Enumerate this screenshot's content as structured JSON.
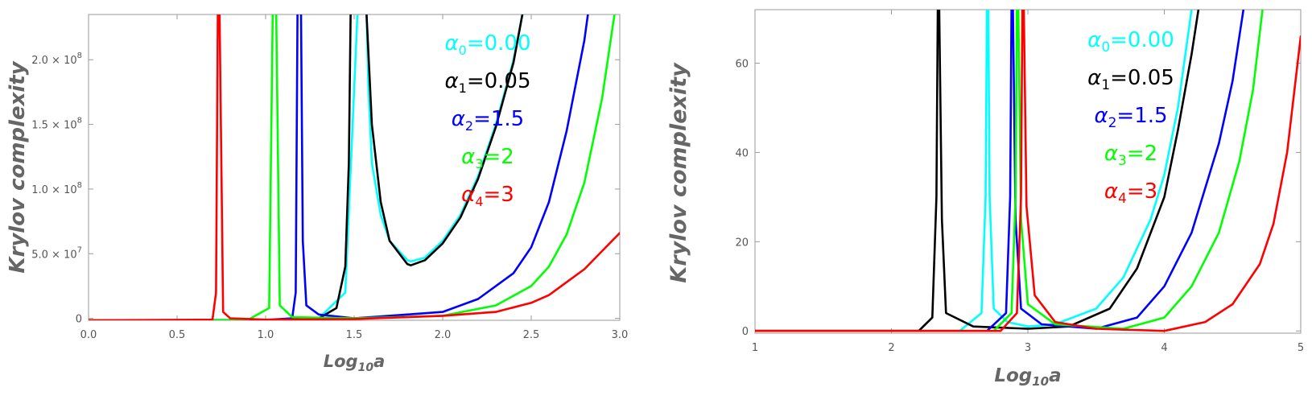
{
  "chart_data": [
    {
      "type": "line",
      "xlabel": "Log",
      "xlabel_sub": "10",
      "xlabel_tail": "a",
      "ylabel": "Krylov complexity",
      "xlim": [
        0,
        3.0
      ],
      "ylim": [
        -1500000,
        235000000
      ],
      "xticks": [
        0.0,
        0.5,
        1.0,
        1.5,
        2.0,
        2.5,
        3.0
      ],
      "xtick_labels": [
        "0.0",
        "0.5",
        "1.0",
        "1.5",
        "2.0",
        "2.5",
        "3.0"
      ],
      "yticks": [
        0,
        50000000,
        100000000,
        150000000,
        200000000
      ],
      "ytick_labels": [
        {
          "mantissa": "0",
          "exponent": ""
        },
        {
          "mantissa": "5.0 × 10",
          "exponent": "7"
        },
        {
          "mantissa": "1.0 × 10",
          "exponent": "8"
        },
        {
          "mantissa": "1.5 × 10",
          "exponent": "8"
        },
        {
          "mantissa": "2.0 × 10",
          "exponent": "8"
        }
      ],
      "legend_placement": "top-right",
      "series": [
        {
          "name": "α0=0.00",
          "sym": "α",
          "sub": "0",
          "tail": "=0.00",
          "color": "#00ffff",
          "x": [
            0.0,
            1.0,
            1.3,
            1.45,
            1.52,
            1.54,
            1.57,
            1.58,
            1.6,
            1.65,
            1.7,
            1.8,
            1.82,
            1.9,
            2.0,
            2.1,
            2.2,
            2.3,
            2.4,
            2.45
          ],
          "y": [
            -1500000,
            -1400000,
            0,
            20000000,
            240000000,
            240000000,
            235000000,
            180000000,
            120000000,
            80000000,
            60000000,
            45000000,
            44000000,
            47000000,
            60000000,
            80000000,
            110000000,
            150000000,
            200000000,
            235000000
          ]
        },
        {
          "name": "α1=0.05",
          "sym": "α",
          "sub": "1",
          "tail": "=0.05",
          "color": "#000000",
          "x": [
            0.0,
            1.0,
            1.3,
            1.4,
            1.45,
            1.47,
            1.48,
            1.49,
            1.55,
            1.57,
            1.6,
            1.65,
            1.7,
            1.8,
            1.82,
            1.9,
            2.0,
            2.1,
            2.2,
            2.3,
            2.4,
            2.45
          ],
          "y": [
            -1500000,
            -1400000,
            0,
            8000000,
            40000000,
            120000000,
            235000000,
            240000000,
            240000000,
            235000000,
            150000000,
            90000000,
            60000000,
            42000000,
            41000000,
            45000000,
            58000000,
            78000000,
            108000000,
            148000000,
            198000000,
            235000000
          ]
        },
        {
          "name": "α2=1.5",
          "sym": "α",
          "sub": "2",
          "tail": "=1.5",
          "color": "#0000ff",
          "x": [
            0.0,
            1.0,
            1.15,
            1.17,
            1.18,
            1.19,
            1.2,
            1.21,
            1.23,
            1.3,
            1.5,
            2.0,
            2.2,
            2.4,
            2.5,
            2.6,
            2.7,
            2.8,
            2.82
          ],
          "y": [
            -1500000,
            -1200000,
            0,
            20000000,
            235000000,
            240000000,
            235000000,
            60000000,
            10000000,
            3000000,
            0,
            5000000,
            15000000,
            35000000,
            55000000,
            90000000,
            145000000,
            215000000,
            235000000
          ]
        },
        {
          "name": "α3=2",
          "sym": "α",
          "sub": "3",
          "tail": "=2",
          "color": "#00ff00",
          "x": [
            0.0,
            0.9,
            1.02,
            1.04,
            1.05,
            1.06,
            1.08,
            1.15,
            1.5,
            2.0,
            2.3,
            2.5,
            2.6,
            2.7,
            2.8,
            2.9,
            2.97
          ],
          "y": [
            -1500000,
            -1200000,
            8000000,
            235000000,
            240000000,
            235000000,
            10000000,
            1000000,
            0,
            2000000,
            10000000,
            25000000,
            40000000,
            65000000,
            105000000,
            170000000,
            235000000
          ]
        },
        {
          "name": "α4=3",
          "sym": "α",
          "sub": "4",
          "tail": "=3",
          "color": "#ff0000",
          "x": [
            0.0,
            0.7,
            0.72,
            0.73,
            0.735,
            0.74,
            0.76,
            0.8,
            1.0,
            1.5,
            2.0,
            2.3,
            2.5,
            2.6,
            2.7,
            2.8,
            2.9,
            3.0
          ],
          "y": [
            -1500000,
            -1000000,
            20000000,
            235000000,
            240000000,
            235000000,
            5000000,
            0,
            -1000000,
            -500000,
            2000000,
            5000000,
            12000000,
            18000000,
            28000000,
            38000000,
            52000000,
            66000000
          ]
        }
      ]
    },
    {
      "type": "line",
      "xlabel": "Log",
      "xlabel_sub": "10",
      "xlabel_tail": "a",
      "ylabel": "Krylov complexity",
      "xlim": [
        1,
        5
      ],
      "ylim": [
        -0.5,
        72
      ],
      "xticks": [
        1,
        2,
        3,
        4,
        5
      ],
      "xtick_labels": [
        "1",
        "2",
        "3",
        "4",
        "5"
      ],
      "yticks": [
        0,
        20,
        40,
        60
      ],
      "ytick_labels": [
        {
          "mantissa": "0",
          "exponent": ""
        },
        {
          "mantissa": "20",
          "exponent": ""
        },
        {
          "mantissa": "40",
          "exponent": ""
        },
        {
          "mantissa": "60",
          "exponent": ""
        }
      ],
      "legend_placement": "top-right",
      "series": [
        {
          "name": "α0=0.00",
          "sym": "α",
          "sub": "0",
          "tail": "=0.00",
          "color": "#00ffff",
          "x": [
            1,
            2.5,
            2.66,
            2.69,
            2.7,
            2.71,
            2.72,
            2.75,
            2.85,
            3.0,
            3.2,
            3.5,
            3.7,
            3.9,
            4.0,
            4.1,
            4.2
          ],
          "y": [
            0,
            0,
            4,
            30,
            73,
            73,
            30,
            5,
            2,
            1,
            1.5,
            5,
            12,
            25,
            35,
            50,
            72
          ]
        },
        {
          "name": "α1=0.05",
          "sym": "α",
          "sub": "1",
          "tail": "=0.05",
          "color": "#000000",
          "x": [
            1,
            2.2,
            2.3,
            2.33,
            2.34,
            2.35,
            2.37,
            2.4,
            2.6,
            3.0,
            3.3,
            3.6,
            3.8,
            4.0,
            4.1,
            4.2,
            4.25
          ],
          "y": [
            0,
            0,
            3,
            30,
            73,
            73,
            25,
            4,
            1,
            0.5,
            1,
            5,
            14,
            30,
            45,
            62,
            72
          ]
        },
        {
          "name": "α2=1.5",
          "sym": "α",
          "sub": "2",
          "tail": "=1.5",
          "color": "#0000ff",
          "x": [
            1,
            2.7,
            2.84,
            2.87,
            2.88,
            2.89,
            2.91,
            2.95,
            3.1,
            3.5,
            3.8,
            4.0,
            4.2,
            4.4,
            4.5,
            4.58
          ],
          "y": [
            0,
            0,
            4,
            30,
            73,
            73,
            25,
            5,
            1.5,
            0.5,
            3,
            10,
            22,
            42,
            56,
            72
          ]
        },
        {
          "name": "α3=2",
          "sym": "α",
          "sub": "3",
          "tail": "=2",
          "color": "#00ff00",
          "x": [
            1,
            2.75,
            2.88,
            2.91,
            2.92,
            2.93,
            2.95,
            3.0,
            3.2,
            3.7,
            4.0,
            4.2,
            4.4,
            4.55,
            4.65,
            4.72
          ],
          "y": [
            0,
            0,
            4,
            30,
            73,
            73,
            25,
            6,
            1.5,
            0.5,
            3,
            10,
            22,
            38,
            54,
            72
          ]
        },
        {
          "name": "α4=3",
          "sym": "α",
          "sub": "4",
          "tail": "=3",
          "color": "#ff0000",
          "x": [
            1,
            2.8,
            2.92,
            2.95,
            2.96,
            2.97,
            2.99,
            3.05,
            3.2,
            3.5,
            4.0,
            4.3,
            4.5,
            4.7,
            4.8,
            4.9,
            5.0
          ],
          "y": [
            0,
            0,
            4,
            30,
            73,
            73,
            28,
            8,
            2,
            0.5,
            0,
            2,
            6,
            15,
            24,
            40,
            66
          ]
        }
      ]
    }
  ]
}
